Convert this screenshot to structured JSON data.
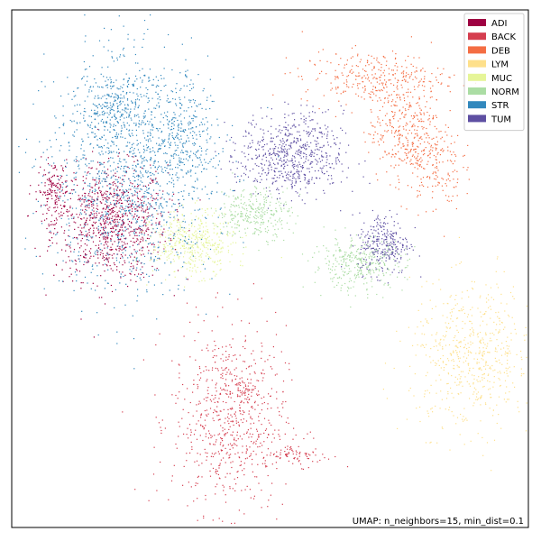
{
  "chart_data": {
    "type": "scatter",
    "title": "",
    "xlabel": "",
    "ylabel": "",
    "xlim": [
      0,
      100
    ],
    "ylim": [
      0,
      100
    ],
    "grid": false,
    "ticks": false,
    "legend_placement": "top-right",
    "annotation": "UMAP: n_neighbors=15, min_dist=0.1",
    "series": [
      {
        "name": "ADI",
        "color": "#9e0142",
        "clusters": [
          {
            "cx": 19,
            "cy": 59,
            "sx": 5.5,
            "sy": 5.5,
            "n": 900
          },
          {
            "cx": 8,
            "cy": 65,
            "sx": 1.5,
            "sy": 3.0,
            "n": 150
          }
        ]
      },
      {
        "name": "BACK",
        "color": "#d53e4f",
        "clusters": [
          {
            "cx": 42,
            "cy": 21,
            "sx": 5.5,
            "sy": 9.0,
            "n": 700
          },
          {
            "cx": 55,
            "cy": 14,
            "sx": 3.5,
            "sy": 1.0,
            "n": 80
          },
          {
            "cx": 45,
            "cy": 27,
            "sx": 1.0,
            "sy": 1.5,
            "n": 40
          }
        ]
      },
      {
        "name": "DEB",
        "color": "#f46d43",
        "clusters": [
          {
            "cx": 70,
            "cy": 87,
            "sx": 7.0,
            "sy": 2.5,
            "n": 300
          },
          {
            "cx": 76,
            "cy": 77,
            "sx": 3.5,
            "sy": 5.0,
            "n": 350
          },
          {
            "cx": 82,
            "cy": 70,
            "sx": 2.5,
            "sy": 4.5,
            "n": 150
          }
        ]
      },
      {
        "name": "LYM",
        "color": "#fee08b",
        "clusters": [
          {
            "cx": 89,
            "cy": 33,
            "sx": 6.0,
            "sy": 7.0,
            "n": 600
          }
        ]
      },
      {
        "name": "MUC",
        "color": "#e6f598",
        "clusters": [
          {
            "cx": 35,
            "cy": 55,
            "sx": 4.0,
            "sy": 3.0,
            "n": 450
          }
        ]
      },
      {
        "name": "NORM",
        "color": "#abdda4",
        "clusters": [
          {
            "cx": 47,
            "cy": 61,
            "sx": 3.5,
            "sy": 2.5,
            "n": 300
          },
          {
            "cx": 67,
            "cy": 51,
            "sx": 4.5,
            "sy": 2.5,
            "n": 350
          }
        ]
      },
      {
        "name": "STR",
        "color": "#3288bd",
        "clusters": [
          {
            "cx": 23,
            "cy": 68,
            "sx": 8.0,
            "sy": 11.0,
            "n": 1300
          },
          {
            "cx": 20,
            "cy": 82,
            "sx": 3.5,
            "sy": 4.0,
            "n": 250
          },
          {
            "cx": 33,
            "cy": 76,
            "sx": 3.5,
            "sy": 5.0,
            "n": 250
          }
        ]
      },
      {
        "name": "TUM",
        "color": "#5e4fa2",
        "clusters": [
          {
            "cx": 54,
            "cy": 72,
            "sx": 5.0,
            "sy": 4.0,
            "n": 650
          },
          {
            "cx": 72,
            "cy": 55,
            "sx": 2.5,
            "sy": 3.0,
            "n": 280
          }
        ]
      }
    ]
  },
  "colors": {
    "STR_display": "#479bb0",
    "LYM_display": "#fbe89a",
    "DEB_display": "#f59e5a"
  }
}
